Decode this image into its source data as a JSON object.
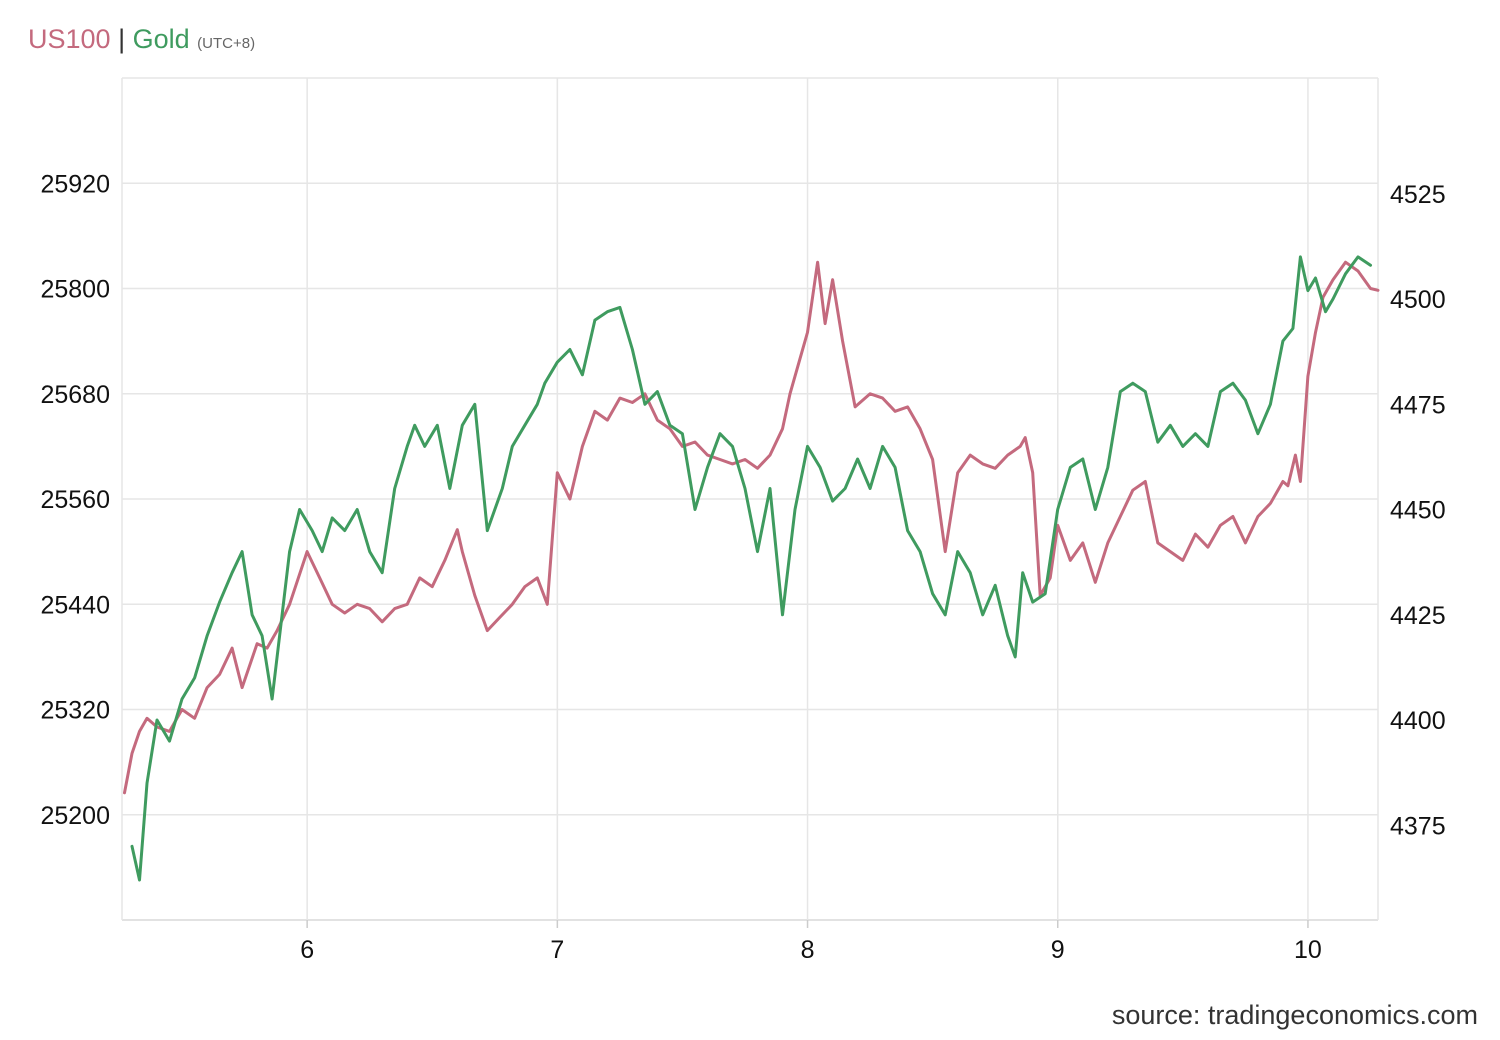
{
  "legend": {
    "series1": "US100",
    "separator": "|",
    "series2": "Gold",
    "timezone": "(UTC+8)"
  },
  "source": "source: tradingeconomics.com",
  "colors": {
    "us100": "#c46a7e",
    "gold": "#3f9b5f",
    "grid": "#e6e6e6",
    "tick_text": "#111111"
  },
  "chart_data": {
    "type": "line",
    "x_label_prefix": "",
    "x_range": [
      5.26,
      10.28
    ],
    "x_ticks": [
      6,
      7,
      8,
      9,
      10
    ],
    "x_tick_labels": [
      "6",
      "7",
      "8",
      "9",
      "10"
    ],
    "left_axis": {
      "range": [
        25080,
        26040
      ],
      "ticks": [
        25200,
        25320,
        25440,
        25560,
        25680,
        25800,
        25920
      ],
      "tick_labels": [
        "25200",
        "25320",
        "25440",
        "25560",
        "25680",
        "25800",
        "25920"
      ]
    },
    "right_axis": {
      "range": [
        4352.5,
        4552.5
      ],
      "ticks": [
        4375,
        4400,
        4425,
        4450,
        4475,
        4500,
        4525
      ],
      "tick_labels": [
        "4375",
        "4400",
        "4425",
        "4450",
        "4475",
        "4500",
        "4525"
      ]
    },
    "grid": true,
    "series": [
      {
        "name": "US100",
        "axis": "left",
        "x": [
          5.27,
          5.3,
          5.33,
          5.36,
          5.4,
          5.45,
          5.5,
          5.55,
          5.6,
          5.65,
          5.7,
          5.74,
          5.8,
          5.84,
          5.88,
          5.93,
          6.0,
          6.05,
          6.1,
          6.15,
          6.2,
          6.25,
          6.3,
          6.35,
          6.4,
          6.45,
          6.5,
          6.55,
          6.6,
          6.62,
          6.67,
          6.72,
          6.77,
          6.82,
          6.87,
          6.92,
          6.96,
          7.0,
          7.05,
          7.1,
          7.15,
          7.2,
          7.25,
          7.3,
          7.35,
          7.4,
          7.45,
          7.5,
          7.55,
          7.6,
          7.65,
          7.7,
          7.75,
          7.8,
          7.85,
          7.9,
          7.93,
          7.97,
          8.0,
          8.04,
          8.07,
          8.1,
          8.14,
          8.19,
          8.25,
          8.3,
          8.35,
          8.4,
          8.45,
          8.5,
          8.55,
          8.6,
          8.65,
          8.7,
          8.75,
          8.8,
          8.85,
          8.87,
          8.9,
          8.93,
          8.97,
          9.0,
          9.05,
          9.1,
          9.15,
          9.2,
          9.25,
          9.3,
          9.35,
          9.4,
          9.45,
          9.5,
          9.55,
          9.6,
          9.65,
          9.7,
          9.75,
          9.8,
          9.85,
          9.9,
          9.92,
          9.95,
          9.97,
          10.0,
          10.03,
          10.06,
          10.1,
          10.15,
          10.2,
          10.25,
          10.28
        ],
        "values": [
          25225,
          25270,
          25295,
          25310,
          25300,
          25295,
          25320,
          25310,
          25345,
          25360,
          25390,
          25345,
          25395,
          25390,
          25410,
          25440,
          25500,
          25470,
          25440,
          25430,
          25440,
          25435,
          25420,
          25435,
          25440,
          25470,
          25460,
          25490,
          25525,
          25500,
          25450,
          25410,
          25425,
          25440,
          25460,
          25470,
          25440,
          25590,
          25560,
          25620,
          25660,
          25650,
          25675,
          25670,
          25680,
          25650,
          25640,
          25620,
          25625,
          25610,
          25605,
          25600,
          25605,
          25595,
          25610,
          25640,
          25680,
          25720,
          25750,
          25830,
          25760,
          25810,
          25740,
          25665,
          25680,
          25675,
          25660,
          25665,
          25640,
          25605,
          25500,
          25590,
          25610,
          25600,
          25595,
          25610,
          25620,
          25630,
          25590,
          25450,
          25470,
          25530,
          25490,
          25510,
          25465,
          25510,
          25540,
          25570,
          25580,
          25510,
          25500,
          25490,
          25520,
          25505,
          25530,
          25540,
          25510,
          25540,
          25555,
          25580,
          25575,
          25610,
          25580,
          25700,
          25750,
          25790,
          25810,
          25830,
          25820,
          25800,
          25798
        ]
      },
      {
        "name": "Gold",
        "axis": "right",
        "x": [
          5.3,
          5.33,
          5.36,
          5.4,
          5.45,
          5.5,
          5.55,
          5.6,
          5.65,
          5.7,
          5.74,
          5.78,
          5.82,
          5.86,
          5.89,
          5.93,
          5.97,
          6.02,
          6.06,
          6.1,
          6.15,
          6.2,
          6.25,
          6.3,
          6.35,
          6.4,
          6.43,
          6.47,
          6.52,
          6.57,
          6.62,
          6.67,
          6.72,
          6.75,
          6.78,
          6.82,
          6.87,
          6.92,
          6.95,
          7.0,
          7.05,
          7.1,
          7.15,
          7.2,
          7.25,
          7.3,
          7.35,
          7.4,
          7.45,
          7.5,
          7.55,
          7.6,
          7.65,
          7.7,
          7.75,
          7.8,
          7.85,
          7.9,
          7.95,
          8.0,
          8.05,
          8.1,
          8.15,
          8.2,
          8.25,
          8.3,
          8.35,
          8.4,
          8.45,
          8.5,
          8.55,
          8.6,
          8.65,
          8.7,
          8.75,
          8.8,
          8.83,
          8.86,
          8.9,
          8.95,
          9.0,
          9.05,
          9.1,
          9.15,
          9.2,
          9.25,
          9.3,
          9.35,
          9.4,
          9.45,
          9.5,
          9.55,
          9.6,
          9.65,
          9.7,
          9.75,
          9.8,
          9.85,
          9.9,
          9.94,
          9.97,
          10.0,
          10.03,
          10.07,
          10.1,
          10.15,
          10.2,
          10.25
        ],
        "values": [
          4370,
          4362,
          4385,
          4400,
          4395,
          4405,
          4410,
          4420,
          4428,
          4435,
          4440,
          4425,
          4420,
          4405,
          4420,
          4440,
          4450,
          4445,
          4440,
          4448,
          4445,
          4450,
          4440,
          4435,
          4455,
          4465,
          4470,
          4465,
          4470,
          4455,
          4470,
          4475,
          4445,
          4450,
          4455,
          4465,
          4470,
          4475,
          4480,
          4485,
          4488,
          4482,
          4495,
          4497,
          4498,
          4488,
          4475,
          4478,
          4470,
          4468,
          4450,
          4460,
          4468,
          4465,
          4455,
          4440,
          4455,
          4425,
          4450,
          4465,
          4460,
          4452,
          4455,
          4462,
          4455,
          4465,
          4460,
          4445,
          4440,
          4430,
          4425,
          4440,
          4435,
          4425,
          4432,
          4420,
          4415,
          4435,
          4428,
          4430,
          4450,
          4460,
          4462,
          4450,
          4460,
          4478,
          4480,
          4478,
          4466,
          4470,
          4465,
          4468,
          4465,
          4478,
          4480,
          4476,
          4468,
          4475,
          4490,
          4493,
          4510,
          4502,
          4505,
          4497,
          4500,
          4506,
          4510,
          4508
        ]
      }
    ]
  }
}
